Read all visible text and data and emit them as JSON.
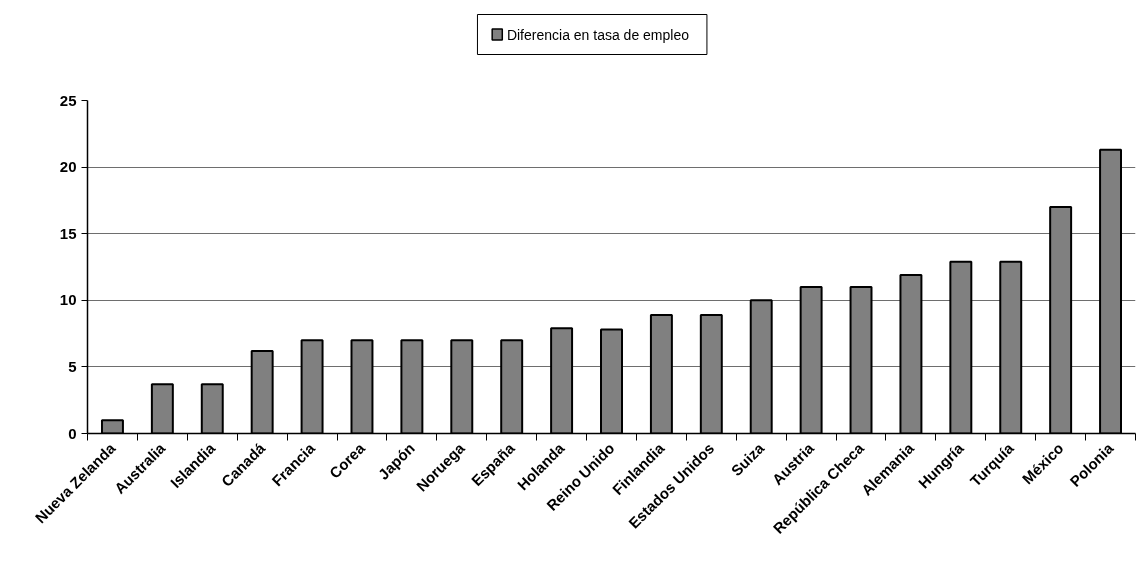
{
  "chart_data": {
    "type": "bar",
    "categories": [
      "Nueva Zelanda",
      "Australia",
      "Islandia",
      "Canadá",
      "Francia",
      "Corea",
      "Japón",
      "Noruega",
      "España",
      "Holanda",
      "Reino Unido",
      "Finlandia",
      "Estados Unidos",
      "Suiza",
      "Austria",
      "República Checa",
      "Alemania",
      "Hungría",
      "Turquía",
      "México",
      "Polonia"
    ],
    "series": [
      {
        "name": "Diferencia en tasa de empleo",
        "color": "#808080",
        "values": [
          1,
          3.7,
          3.7,
          6.2,
          7,
          7,
          7,
          7,
          7,
          7.9,
          7.8,
          8.9,
          8.9,
          10,
          11,
          11,
          11.9,
          12.9,
          12.9,
          17,
          21.3
        ]
      }
    ],
    "ylim": [
      0,
      25
    ],
    "yticks": [
      0,
      5,
      10,
      15,
      20,
      25
    ],
    "grid": "y",
    "legend": "top"
  }
}
